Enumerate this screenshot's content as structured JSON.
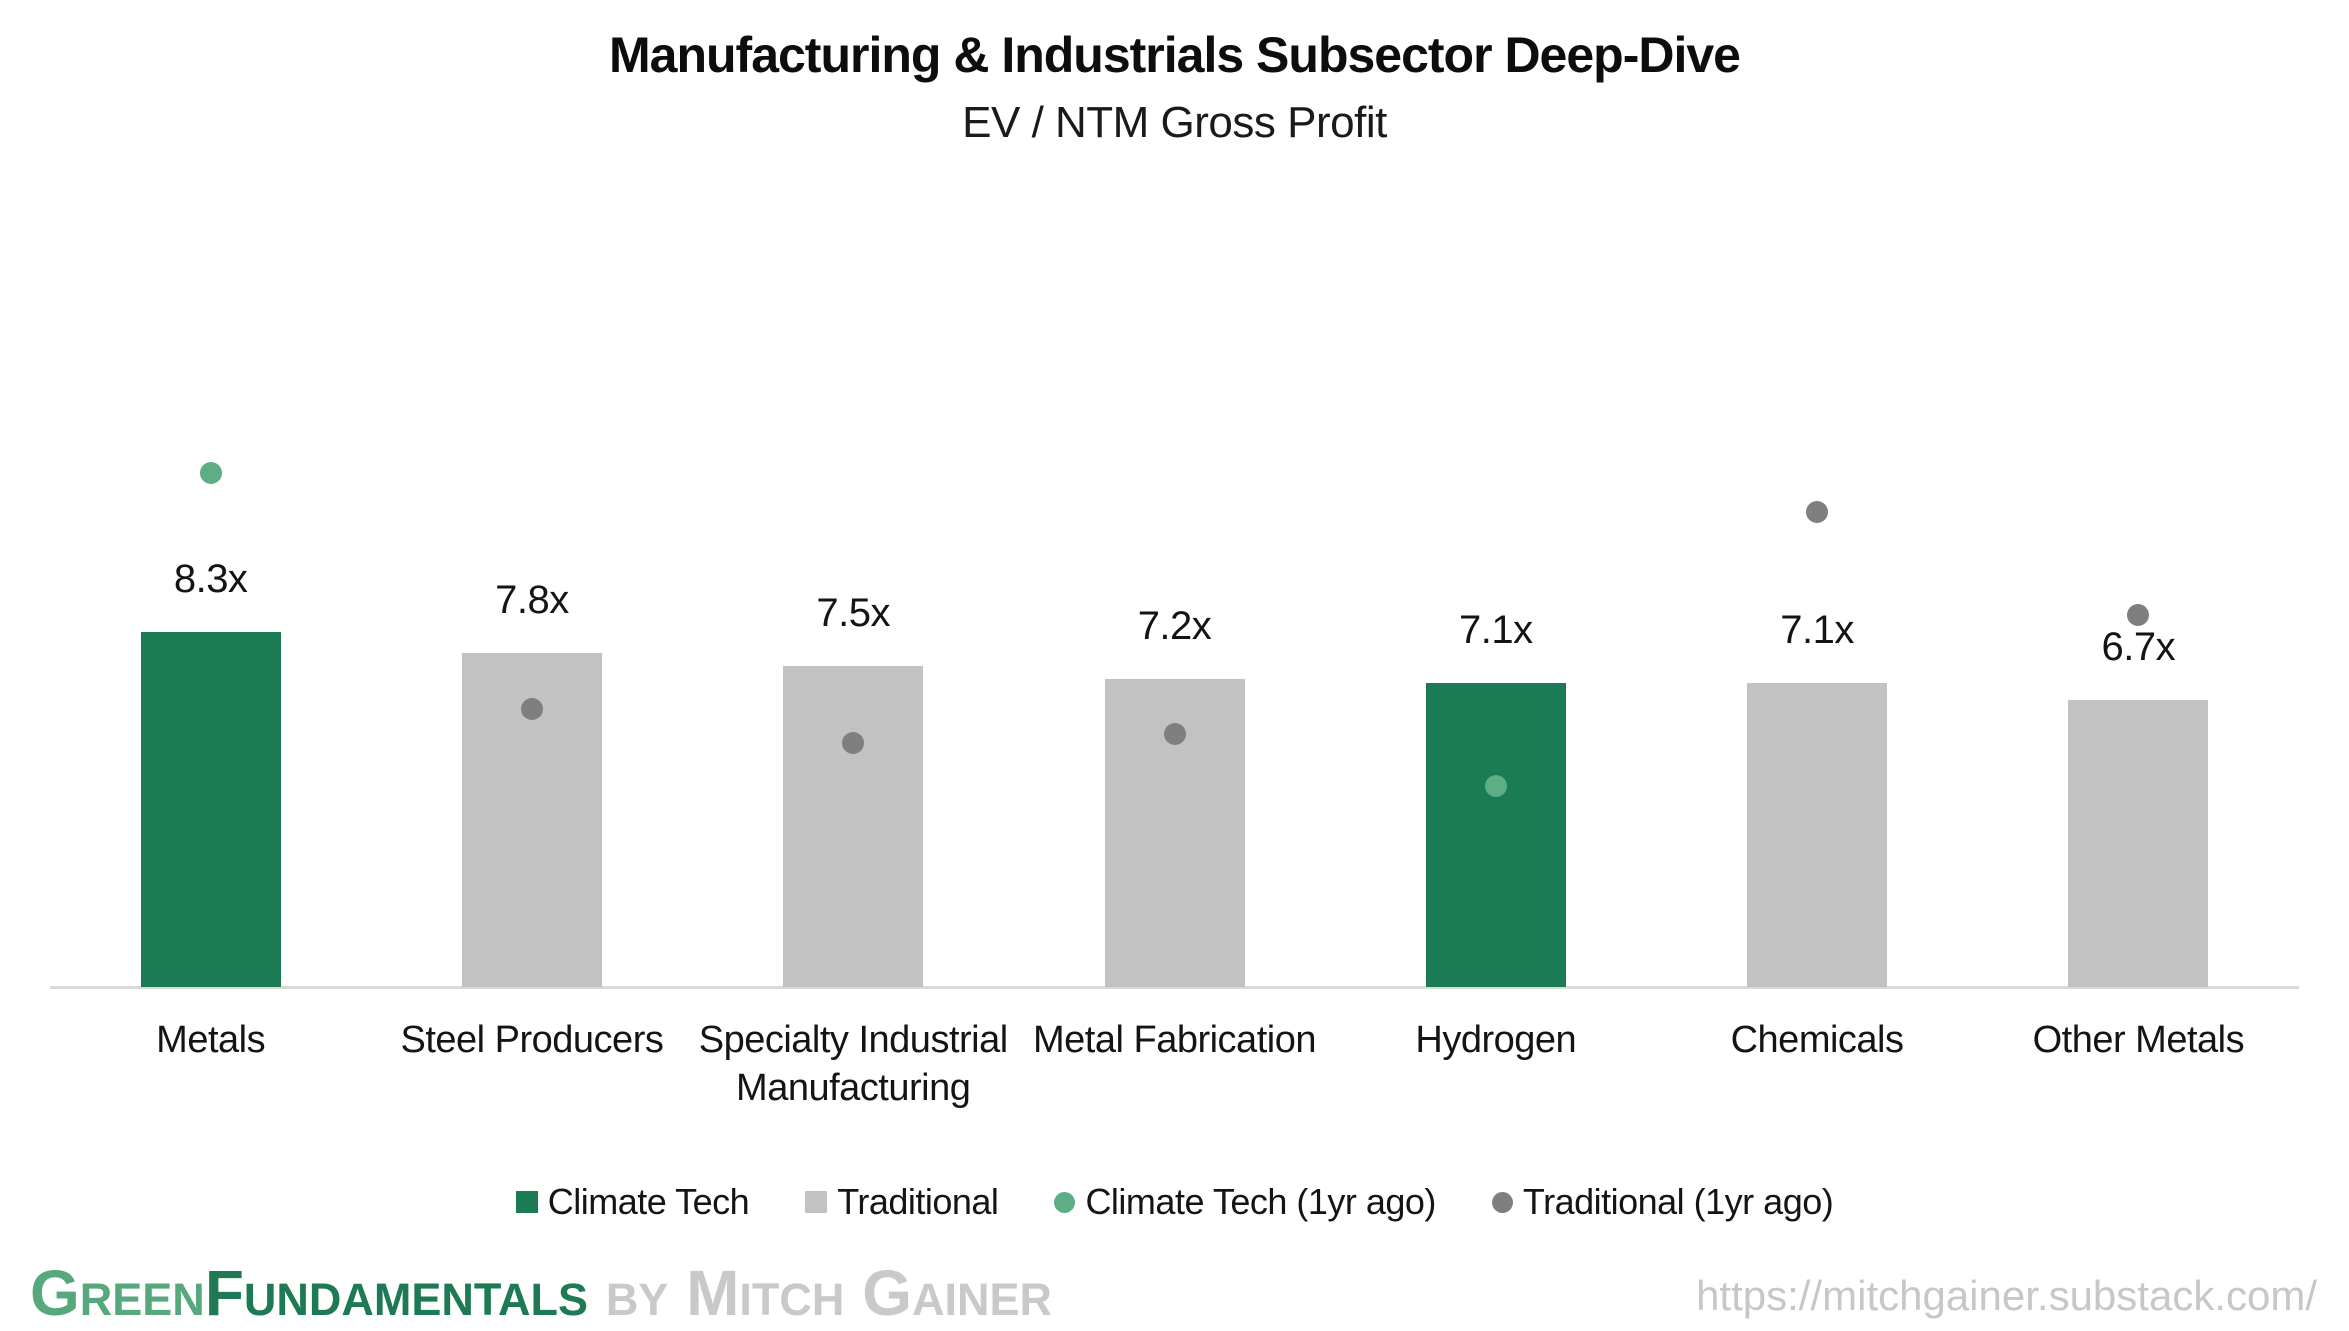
{
  "header": {
    "title": "Manufacturing & Industrials Subsector Deep-Dive",
    "subtitle": "EV / NTM Gross Profit"
  },
  "chart_data": {
    "type": "bar",
    "title": "Manufacturing & Industrials Subsector Deep-Dive",
    "subtitle": "EV / NTM Gross Profit",
    "unit": "x",
    "categories": [
      "Metals",
      "Steel Producers",
      "Specialty Industrial Manufacturing",
      "Metal Fabrication",
      "Hydrogen",
      "Chemicals",
      "Other Metals"
    ],
    "bar_labels": [
      "8.3x",
      "7.8x",
      "7.5x",
      "7.2x",
      "7.1x",
      "7.1x",
      "6.7x"
    ],
    "series": [
      {
        "name": "Climate Tech",
        "type": "bar",
        "color": "#1B7B55",
        "values": [
          8.3,
          null,
          null,
          null,
          7.1,
          null,
          null
        ]
      },
      {
        "name": "Traditional",
        "type": "bar",
        "color": "#C3C2C2",
        "values": [
          null,
          7.8,
          7.5,
          7.2,
          null,
          7.1,
          6.7
        ]
      },
      {
        "name": "Climate Tech (1yr ago)",
        "type": "point",
        "color": "#5DAE85",
        "values": [
          12.0,
          null,
          null,
          null,
          4.7,
          null,
          null
        ]
      },
      {
        "name": "Traditional (1yr ago)",
        "type": "point",
        "color": "#7F7F7F",
        "values": [
          null,
          6.5,
          5.7,
          5.9,
          null,
          11.1,
          8.7
        ]
      }
    ],
    "ylim": [
      0,
      13
    ],
    "gridlines": false,
    "y_axis_visible": false,
    "axis_line_color": "#D9D9D9",
    "legend_position": "bottom"
  },
  "legend": {
    "items": [
      {
        "label": "Climate Tech",
        "marker": "square",
        "color": "#1B7B55"
      },
      {
        "label": "Traditional",
        "marker": "square",
        "color": "#C3C2C2"
      },
      {
        "label": "Climate Tech (1yr ago)",
        "marker": "circle",
        "color": "#5DAE85"
      },
      {
        "label": "Traditional (1yr ago)",
        "marker": "circle",
        "color": "#7F7F7F"
      }
    ]
  },
  "footer": {
    "brand_parts": [
      {
        "text": "Green",
        "color": "#57A87D"
      },
      {
        "text": "Fundamentals",
        "color": "#1D7A55"
      },
      {
        "text": " by Mitch Gainer",
        "color": "#C9C9C9"
      }
    ],
    "url": "https://mitchgainer.substack.com/"
  }
}
